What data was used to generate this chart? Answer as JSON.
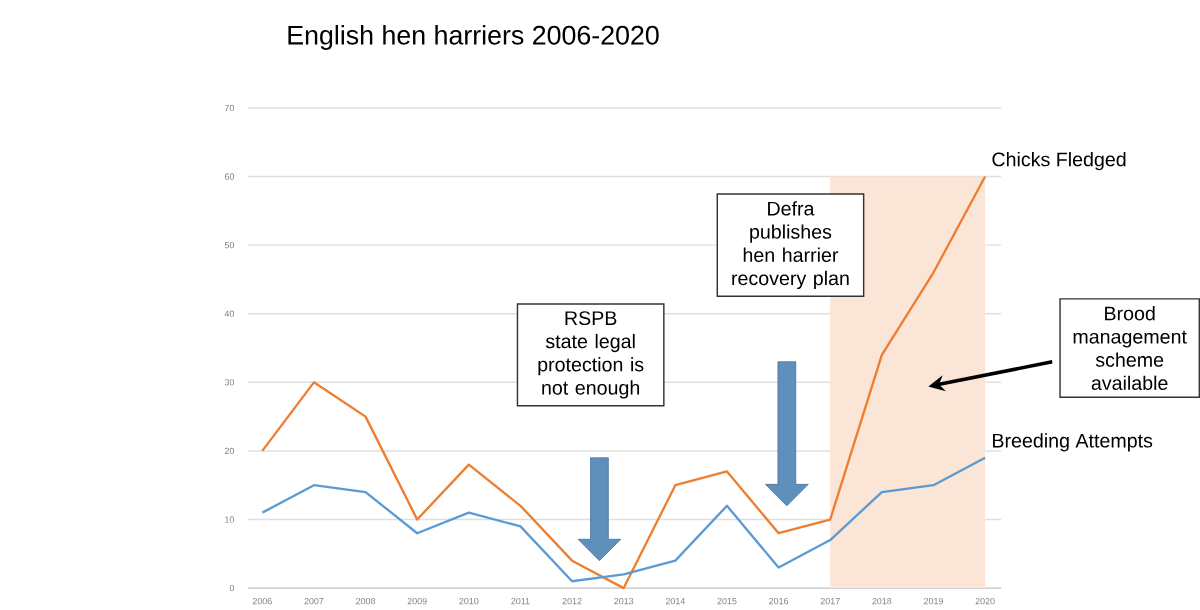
{
  "chart_data": {
    "type": "line",
    "title": "English hen harriers 2006-2020",
    "categories": [
      "2006",
      "2007",
      "2008",
      "2009",
      "2010",
      "2011",
      "2012",
      "2013",
      "2014",
      "2015",
      "2016",
      "2017",
      "2018",
      "2019",
      "2020"
    ],
    "series": [
      {
        "name": "Chicks Fledged",
        "color": "#ed7d31",
        "values": [
          20,
          30,
          25,
          10,
          18,
          12,
          4,
          0,
          15,
          17,
          8,
          10,
          34,
          46,
          60
        ]
      },
      {
        "name": "Breeding Attempts",
        "color": "#5b9bd5",
        "values": [
          11,
          15,
          14,
          8,
          11,
          9,
          1,
          2,
          4,
          12,
          3,
          7,
          14,
          15,
          19
        ]
      }
    ],
    "ylim": [
      0,
      70
    ],
    "yticks": [
      0,
      10,
      20,
      30,
      40,
      50,
      60,
      70
    ],
    "grid": "y",
    "legend": false,
    "marker": "none",
    "line_style": "solid",
    "bands": [
      {
        "axis": "x",
        "from": "2017",
        "to": "2020",
        "label": "Brood management scheme available",
        "color": "#fbe5d6"
      }
    ],
    "annotations": [
      "RSPB state legal protection is not enough",
      "Defra publishes hen harrier recovery plan"
    ]
  }
}
